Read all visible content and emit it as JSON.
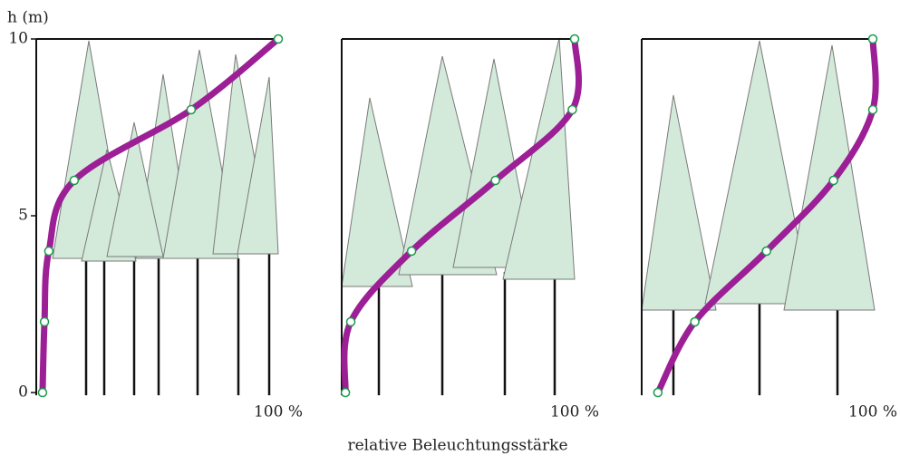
{
  "chart_data": [
    {
      "type": "line",
      "ylabel": "h (m)",
      "x": [
        2.6,
        3.4,
        5.2,
        15.7,
        64,
        100
      ],
      "series": [
        {
          "color": "#9c1f96",
          "values": [
            0,
            2,
            4,
            6,
            8,
            10
          ]
        }
      ],
      "xlim": [
        0,
        100
      ],
      "xticks": [
        {
          "value": 100,
          "label": "100 %"
        }
      ],
      "ylim": [
        0,
        10
      ],
      "yticks": [
        0,
        5,
        10
      ]
    },
    {
      "type": "line",
      "xlabel": "relative Beleuchtungsstärke",
      "x": [
        1.6,
        3.9,
        30,
        66,
        99,
        100
      ],
      "series": [
        {
          "color": "#9c1f96",
          "values": [
            0,
            2,
            4,
            6,
            8,
            10
          ]
        }
      ],
      "xlim": [
        0,
        100
      ],
      "xticks": [
        {
          "value": 100,
          "label": "100 %"
        }
      ],
      "ylim": [
        0,
        10
      ]
    },
    {
      "type": "line",
      "x": [
        7,
        23,
        54,
        83,
        100,
        100
      ],
      "series": [
        {
          "color": "#9c1f96",
          "values": [
            0,
            2,
            4,
            6,
            8,
            10
          ]
        }
      ],
      "xlim": [
        0,
        100
      ],
      "xticks": [
        {
          "value": 100,
          "label": "100 %"
        }
      ],
      "ylim": [
        0,
        10
      ]
    }
  ]
}
